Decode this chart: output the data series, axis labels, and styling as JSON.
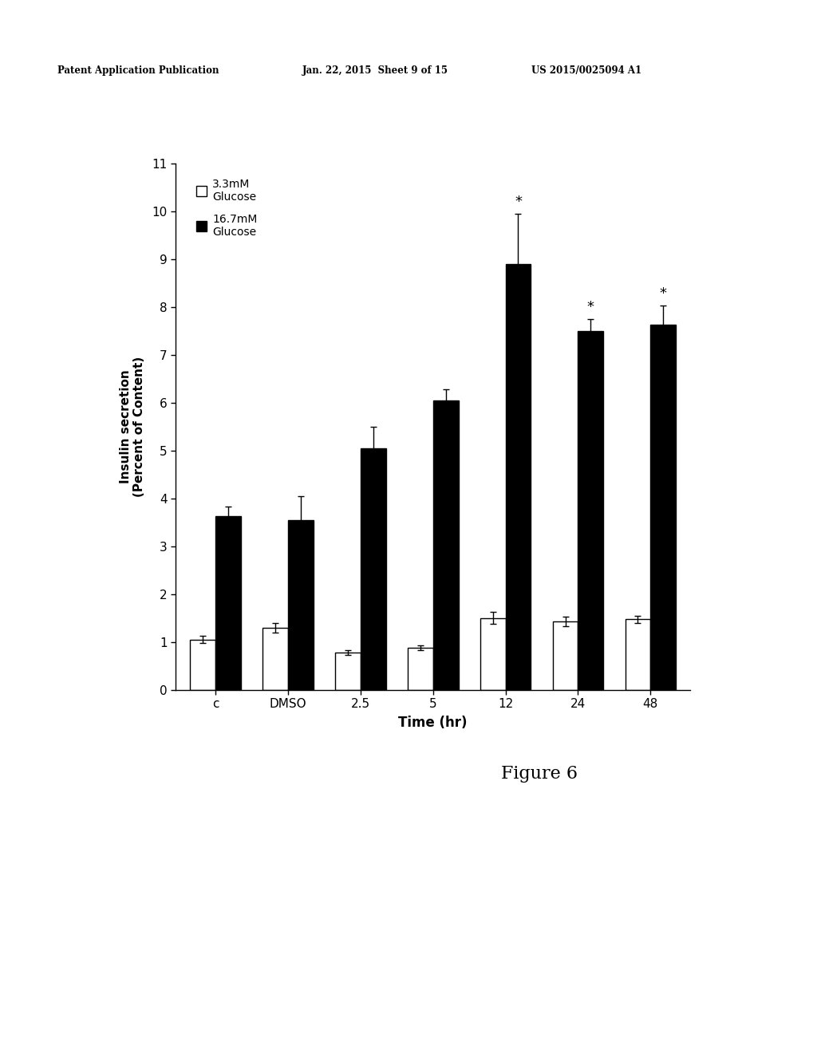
{
  "categories": [
    "c",
    "DMSO",
    "2.5",
    "5",
    "12",
    "24",
    "48"
  ],
  "white_values": [
    1.05,
    1.3,
    0.78,
    0.88,
    1.5,
    1.42,
    1.47
  ],
  "black_values": [
    3.62,
    3.55,
    5.05,
    6.05,
    8.9,
    7.5,
    7.62
  ],
  "white_errors": [
    0.08,
    0.1,
    0.05,
    0.05,
    0.12,
    0.1,
    0.07
  ],
  "black_errors": [
    0.2,
    0.5,
    0.45,
    0.22,
    1.05,
    0.25,
    0.4
  ],
  "asterisk_indices": [
    4,
    5,
    6
  ],
  "ylabel": "Insulin secretion\n(Percent of Content)",
  "xlabel": "Time (hr)",
  "ylim": [
    0,
    11
  ],
  "yticks": [
    0,
    1,
    2,
    3,
    4,
    5,
    6,
    7,
    8,
    9,
    10,
    11
  ],
  "legend_label_white": "3.3mM\nGlucose",
  "legend_label_black": "16.7mM\nGlucose",
  "figure_label": "Figure 6",
  "bar_width": 0.35,
  "header_left": "Patent Application Publication",
  "header_mid": "Jan. 22, 2015  Sheet 9 of 15",
  "header_right": "US 2015/0025094 A1"
}
